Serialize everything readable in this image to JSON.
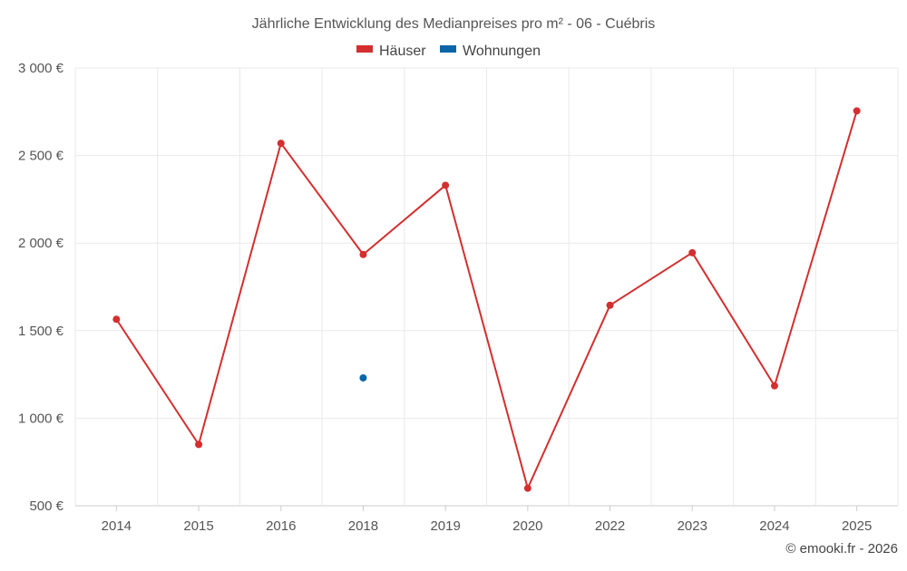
{
  "chart_data": {
    "type": "line",
    "title": "Jährliche Entwicklung des Medianpreises pro m² - 06 - Cuébris",
    "categories": [
      "2014",
      "2015",
      "2016",
      "2018",
      "2019",
      "2020",
      "2022",
      "2023",
      "2024",
      "2025"
    ],
    "series": [
      {
        "name": "Häuser",
        "color": "#d32f2f",
        "values": [
          1565,
          850,
          2570,
          1935,
          2330,
          600,
          1645,
          1945,
          1185,
          2755
        ]
      },
      {
        "name": "Wohnungen",
        "color": "#0a66a8",
        "values": [
          null,
          null,
          null,
          1230,
          null,
          null,
          null,
          null,
          null,
          null
        ]
      }
    ],
    "yticks": [
      "500 €",
      "1 000 €",
      "1 500 €",
      "2 000 €",
      "2 500 €",
      "3 000 €"
    ],
    "ylim": [
      500,
      3000
    ],
    "xlabel": "",
    "ylabel": "",
    "legend_position": "top-center",
    "grid": true
  },
  "credit": "© emooki.fr - 2026"
}
